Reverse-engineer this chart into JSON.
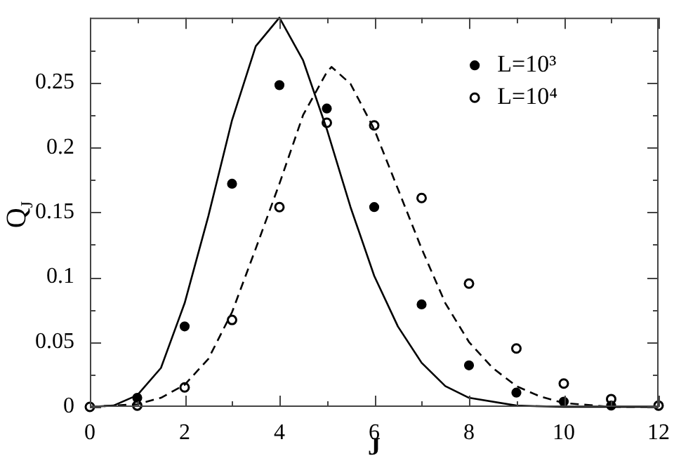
{
  "chart_data": {
    "type": "scatter",
    "xlabel": "J",
    "ylabel": "Q$_{J}$",
    "xlim": [
      0,
      12
    ],
    "ylim": [
      0,
      0.3
    ],
    "xticks": [
      0,
      {
        "value": 1,
        "label": null
      },
      2,
      {
        "value": 3,
        "label": null
      },
      4,
      {
        "value": 5,
        "label": null
      },
      6,
      {
        "value": 7,
        "label": null
      },
      8,
      {
        "value": 9,
        "label": null
      },
      10,
      {
        "value": 11,
        "label": null
      },
      12
    ],
    "yticks": [
      0,
      {
        "value": 0.025,
        "label": null
      },
      0.05,
      {
        "value": 0.075,
        "label": null
      },
      0.1,
      {
        "value": 0.125,
        "label": null
      },
      0.15,
      {
        "value": 0.175,
        "label": null
      },
      0.2,
      {
        "value": 0.225,
        "label": null
      },
      0.25,
      {
        "value": 0.275,
        "label": null
      }
    ],
    "grid": false,
    "legend": "top right",
    "series": [
      {
        "type": "line",
        "color": "#000000",
        "line_style": "solid",
        "marker": "none",
        "x": [
          0,
          0.5,
          1,
          1.5,
          2,
          2.5,
          3,
          3.5,
          4,
          4.5,
          5,
          5.5,
          6,
          6.5,
          7,
          7.5,
          8,
          9,
          10,
          12
        ],
        "values": [
          0,
          0.001,
          0.009,
          0.03,
          0.08,
          0.147,
          0.221,
          0.278,
          0.3,
          0.267,
          0.214,
          0.154,
          0.101,
          0.062,
          0.034,
          0.016,
          0.007,
          0.001,
          0,
          0
        ]
      },
      {
        "type": "line",
        "color": "#000000",
        "line_style": "dashed",
        "marker": "none",
        "x": [
          0,
          1,
          1.5,
          2,
          2.5,
          3,
          3.5,
          4,
          4.5,
          5,
          5.1,
          5.5,
          6,
          6.5,
          7,
          7.5,
          8,
          8.5,
          9,
          9.5,
          10,
          11,
          12
        ],
        "values": [
          0,
          0.002,
          0.007,
          0.017,
          0.037,
          0.073,
          0.122,
          0.172,
          0.225,
          0.258,
          0.262,
          0.249,
          0.214,
          0.168,
          0.122,
          0.08,
          0.05,
          0.03,
          0.016,
          0.008,
          0.003,
          0,
          0
        ]
      },
      {
        "name": "L=10³",
        "color": "#000000",
        "marker": "circle",
        "x": [
          1,
          2,
          3,
          4,
          5,
          6,
          7,
          8,
          9,
          10,
          11
        ],
        "values": [
          0.007,
          0.062,
          0.172,
          0.248,
          0.23,
          0.154,
          0.079,
          0.032,
          0.011,
          0.004,
          0.001
        ]
      },
      {
        "name": "L=10⁴",
        "color": "#000000",
        "marker": "circle-open",
        "x": [
          0,
          1,
          2,
          3,
          4,
          5,
          6,
          7,
          8,
          9,
          10,
          11,
          12
        ],
        "values": [
          0,
          0.001,
          0.015,
          0.067,
          0.154,
          0.219,
          0.217,
          0.161,
          0.095,
          0.045,
          0.018,
          0.006,
          0.001
        ]
      }
    ]
  }
}
